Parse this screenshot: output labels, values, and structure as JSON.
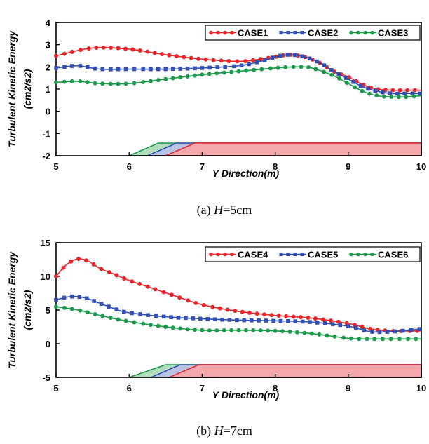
{
  "chart_data": [
    {
      "type": "line",
      "xlabel": "Y Direction(m)",
      "ylabel": "Turbulent Kinetic Energy",
      "ylabel_unit": "(cm2/s2)",
      "xlim": [
        5,
        10
      ],
      "ylim": [
        -2,
        4
      ],
      "xticks": [
        "5",
        "6",
        "7",
        "8",
        "9",
        "10"
      ],
      "yticks": [
        "4",
        "3",
        "2",
        "1",
        "0",
        "-1",
        "-2"
      ],
      "legend_position": "top-right",
      "caption_prefix": "(a)",
      "caption_var": "H",
      "caption_value": "=5cm",
      "series": [
        {
          "name": "CASE1",
          "color": "#e8262a",
          "marker": "circle",
          "x": [
            5.0,
            5.5,
            6.0,
            6.5,
            7.0,
            7.5,
            7.8,
            8.0,
            8.2,
            8.4,
            8.6,
            8.8,
            9.0,
            9.2,
            9.4,
            9.6,
            9.8,
            10.0
          ],
          "y": [
            2.5,
            2.85,
            2.8,
            2.55,
            2.35,
            2.25,
            2.35,
            2.45,
            2.55,
            2.45,
            2.2,
            1.8,
            1.55,
            1.2,
            1.0,
            0.95,
            0.95,
            0.95
          ]
        },
        {
          "name": "CASE2",
          "color": "#3250b4",
          "marker": "square",
          "x": [
            5.0,
            5.3,
            5.6,
            6.0,
            6.5,
            7.0,
            7.5,
            7.8,
            8.0,
            8.2,
            8.4,
            8.6,
            8.8,
            9.0,
            9.2,
            9.4,
            9.6,
            9.8,
            10.0
          ],
          "y": [
            1.95,
            2.05,
            1.9,
            1.9,
            1.9,
            1.95,
            2.05,
            2.25,
            2.45,
            2.55,
            2.45,
            2.2,
            1.8,
            1.45,
            1.1,
            0.9,
            0.8,
            0.8,
            0.8
          ]
        },
        {
          "name": "CASE3",
          "color": "#1a9a4a",
          "marker": "circle",
          "x": [
            5.0,
            5.3,
            5.6,
            6.0,
            6.5,
            7.0,
            7.5,
            8.0,
            8.3,
            8.5,
            8.8,
            9.0,
            9.2,
            9.4,
            9.6,
            9.8,
            10.0
          ],
          "y": [
            1.3,
            1.35,
            1.25,
            1.25,
            1.45,
            1.65,
            1.8,
            1.95,
            2.0,
            1.95,
            1.6,
            1.25,
            0.9,
            0.7,
            0.65,
            0.65,
            0.7
          ]
        }
      ],
      "bed_profiles": [
        {
          "name": "CASE1",
          "color": "#e8262a",
          "fill": "#f4a8ab",
          "x_toe": 6.5,
          "x_crest": 6.9
        },
        {
          "name": "CASE2",
          "color": "#3250b4",
          "fill": "#b9c3e6",
          "x_toe": 6.25,
          "x_crest": 6.65
        },
        {
          "name": "CASE3",
          "color": "#1a9a4a",
          "fill": "#b2ddbf",
          "x_toe": 6.0,
          "x_crest": 6.4
        }
      ]
    },
    {
      "type": "line",
      "xlabel": "Y Direction(m)",
      "ylabel": "Turbulent Kinetic Energy",
      "ylabel_unit": "(cm2/s2)",
      "xlim": [
        5,
        10
      ],
      "ylim": [
        -5,
        15
      ],
      "xticks": [
        "5",
        "6",
        "7",
        "8",
        "9",
        "10"
      ],
      "yticks": [
        "15",
        "10",
        "5",
        "0",
        "-5"
      ],
      "legend_position": "top-right",
      "caption_prefix": "(b)",
      "caption_var": "H",
      "caption_value": "=7cm",
      "series": [
        {
          "name": "CASE4",
          "color": "#e8262a",
          "marker": "circle",
          "x": [
            5.0,
            5.15,
            5.3,
            5.45,
            5.6,
            5.8,
            6.0,
            6.3,
            6.6,
            7.0,
            7.5,
            8.0,
            8.5,
            9.0,
            9.3,
            9.6,
            10.0
          ],
          "y": [
            10.0,
            11.8,
            12.6,
            12.2,
            11.2,
            10.3,
            9.4,
            8.3,
            7.2,
            5.8,
            4.8,
            4.2,
            3.8,
            3.0,
            2.2,
            1.9,
            1.9
          ]
        },
        {
          "name": "CASE5",
          "color": "#3250b4",
          "marker": "square",
          "x": [
            5.0,
            5.2,
            5.4,
            5.6,
            5.8,
            6.0,
            6.5,
            7.0,
            7.5,
            8.0,
            8.5,
            9.0,
            9.3,
            9.6,
            10.0
          ],
          "y": [
            6.5,
            7.0,
            6.8,
            6.0,
            5.2,
            4.6,
            4.0,
            3.7,
            3.5,
            3.4,
            3.2,
            2.6,
            1.8,
            1.8,
            2.2
          ]
        },
        {
          "name": "CASE6",
          "color": "#1a9a4a",
          "marker": "circle",
          "x": [
            5.0,
            5.3,
            5.6,
            6.0,
            6.5,
            7.0,
            7.5,
            8.0,
            8.5,
            9.0,
            9.3,
            9.6,
            10.0
          ],
          "y": [
            5.5,
            5.0,
            4.2,
            3.3,
            2.5,
            2.0,
            2.0,
            1.9,
            1.5,
            0.8,
            0.7,
            0.7,
            0.7
          ]
        }
      ],
      "bed_profiles": [
        {
          "name": "CASE4",
          "color": "#e8262a",
          "fill": "#f4a8ab",
          "x_toe": 6.55,
          "x_crest": 6.95
        },
        {
          "name": "CASE5",
          "color": "#3250b4",
          "fill": "#b9c3e6",
          "x_toe": 6.3,
          "x_crest": 6.7
        },
        {
          "name": "CASE6",
          "color": "#1a9a4a",
          "fill": "#b2ddbf",
          "x_toe": 6.0,
          "x_crest": 6.5
        }
      ]
    }
  ]
}
